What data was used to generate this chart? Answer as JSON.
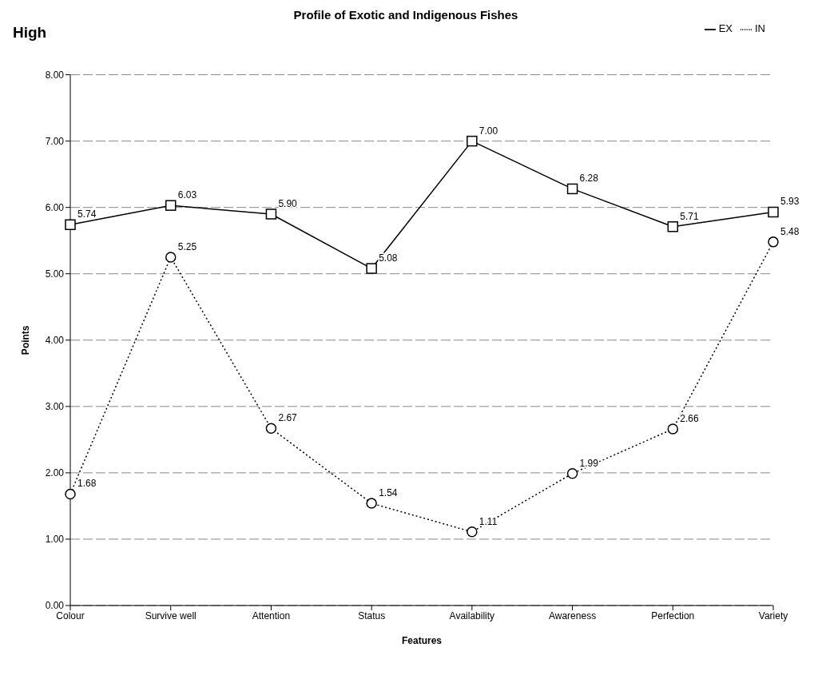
{
  "chart_data": {
    "type": "line",
    "title": "Profile of Exotic and Indigenous Fishes",
    "xlabel": "Features",
    "ylabel": "Points",
    "annotations": [
      "High"
    ],
    "categories": [
      "Colour",
      "Survive well",
      "Attention",
      "Status",
      "Availability",
      "Awareness",
      "Perfection",
      "Variety"
    ],
    "series": [
      {
        "name": "EX",
        "color": "#000000",
        "marker": "square",
        "line_style": "solid",
        "values": [
          5.74,
          6.03,
          5.9,
          5.08,
          7.0,
          6.28,
          5.71,
          5.93
        ],
        "value_labels": [
          "5.74",
          "6.03",
          "5.90",
          "5.08",
          "7.00",
          "6.28",
          "5.71",
          "5.93"
        ]
      },
      {
        "name": "IN",
        "color": "#000000",
        "marker": "circle",
        "line_style": "dotted",
        "values": [
          1.68,
          5.25,
          2.67,
          1.54,
          1.11,
          1.99,
          2.66,
          5.48
        ],
        "value_labels": [
          "1.68",
          "5.25",
          "2.67",
          "1.54",
          "1.11",
          "1.99",
          "2.66",
          "5.48"
        ]
      }
    ],
    "ylim": [
      0,
      8
    ],
    "yticks": [
      {
        "value": 0,
        "label": "0.00"
      },
      {
        "value": 1,
        "label": "1.00"
      },
      {
        "value": 2,
        "label": "2.00"
      },
      {
        "value": 3,
        "label": "3.00"
      },
      {
        "value": 4,
        "label": "4.00"
      },
      {
        "value": 5,
        "label": "5.00"
      },
      {
        "value": 6,
        "label": "6.00"
      },
      {
        "value": 7,
        "label": "7.00"
      },
      {
        "value": 8,
        "label": "8.00"
      }
    ],
    "grid": "y",
    "legend": "top right"
  }
}
